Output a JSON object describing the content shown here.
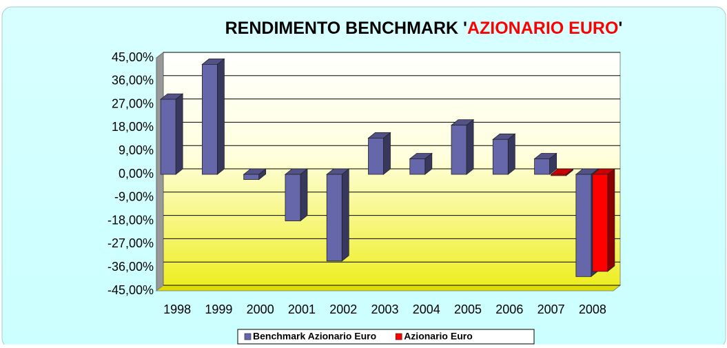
{
  "chart_data": {
    "type": "bar",
    "title": [
      {
        "text": "RENDIMENTO BENCHMARK '",
        "color": "#000000"
      },
      {
        "text": "AZIONARIO EURO",
        "color": "#ff0000"
      },
      {
        "text": "'",
        "color": "#000000"
      }
    ],
    "categories": [
      "1998",
      "1999",
      "2000",
      "2001",
      "2002",
      "2003",
      "2004",
      "2005",
      "2006",
      "2007",
      "2008"
    ],
    "series": [
      {
        "name": "Benchmark Azionario Euro",
        "color": "#6666aa",
        "values": [
          29,
          42.5,
          -2,
          -18,
          -33.5,
          14,
          6,
          19,
          13.5,
          6,
          -39.5
        ]
      },
      {
        "name": "Azionario Euro",
        "color": "#ff0000",
        "values": [
          null,
          null,
          null,
          null,
          null,
          null,
          null,
          null,
          null,
          -0.5,
          -37.5
        ]
      }
    ],
    "ylim": [
      -45,
      45
    ],
    "yticks": [
      {
        "value": 45,
        "label": "45,00%"
      },
      {
        "value": 36,
        "label": "36,00%"
      },
      {
        "value": 27,
        "label": "27,00%"
      },
      {
        "value": 18,
        "label": "18,00%"
      },
      {
        "value": 9,
        "label": "9,00%"
      },
      {
        "value": 0,
        "label": "0,00%"
      },
      {
        "value": -9,
        "label": "-9,00%"
      },
      {
        "value": -18,
        "label": "-18,00%"
      },
      {
        "value": -27,
        "label": "-27,00%"
      },
      {
        "value": -36,
        "label": "-36,00%"
      },
      {
        "value": -45,
        "label": "-45,00%"
      }
    ],
    "grid": true,
    "legend": "bottom"
  }
}
